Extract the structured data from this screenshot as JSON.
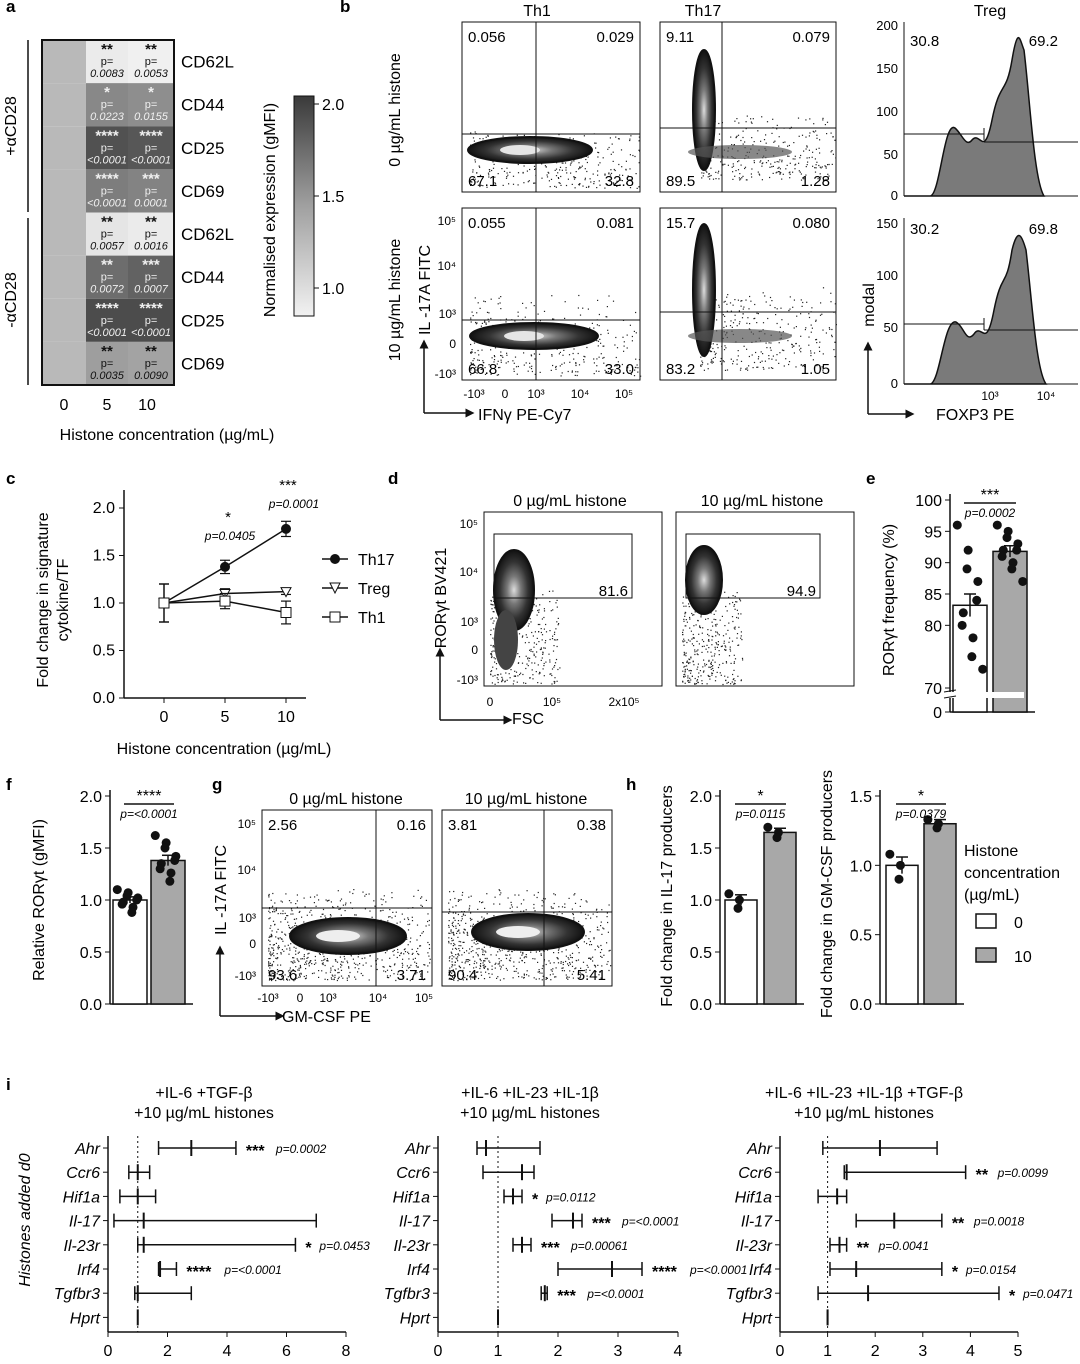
{
  "panel_letters": {
    "a": "a",
    "b": "b",
    "c": "c",
    "d": "d",
    "e": "e",
    "f": "f",
    "g": "g",
    "h": "h",
    "i": "i"
  },
  "colors": {
    "bar_white": "#ffffff",
    "bar_grey": "#a8a8a8",
    "hist_fill": "#7a7a7a",
    "dot": "#111111"
  },
  "panel_a": {
    "group_plus": "+αCD28",
    "group_minus": "-αCD28",
    "x_labels": [
      "0",
      "5",
      "10"
    ],
    "xlabel": "Histone concentration (µg/mL)",
    "colorbar_label": "Normalised expression (gMFI)",
    "colorbar_ticks": [
      "2.0",
      "1.5",
      "1.0"
    ],
    "rows": [
      {
        "marker": "CD62L",
        "cells": [
          {
            "sig": "",
            "p": ""
          },
          {
            "sig": "**",
            "p": "0.0083"
          },
          {
            "sig": "**",
            "p": "0.0053"
          }
        ]
      },
      {
        "marker": "CD44",
        "cells": [
          {
            "sig": "",
            "p": ""
          },
          {
            "sig": "*",
            "p": "0.0223"
          },
          {
            "sig": "*",
            "p": "0.0155"
          }
        ]
      },
      {
        "marker": "CD25",
        "cells": [
          {
            "sig": "",
            "p": ""
          },
          {
            "sig": "****",
            "p": "<0.0001"
          },
          {
            "sig": "****",
            "p": "<0.0001"
          }
        ]
      },
      {
        "marker": "CD69",
        "cells": [
          {
            "sig": "",
            "p": ""
          },
          {
            "sig": "****",
            "p": "<0.0001"
          },
          {
            "sig": "***",
            "p": "0.0001"
          }
        ]
      },
      {
        "marker": "CD62L",
        "cells": [
          {
            "sig": "",
            "p": ""
          },
          {
            "sig": "**",
            "p": "0.0057"
          },
          {
            "sig": "**",
            "p": "0.0016"
          }
        ]
      },
      {
        "marker": "CD44",
        "cells": [
          {
            "sig": "",
            "p": ""
          },
          {
            "sig": "**",
            "p": "0.0072"
          },
          {
            "sig": "***",
            "p": "0.0007"
          }
        ]
      },
      {
        "marker": "CD25",
        "cells": [
          {
            "sig": "",
            "p": ""
          },
          {
            "sig": "****",
            "p": "<0.0001"
          },
          {
            "sig": "****",
            "p": "<0.0001"
          }
        ]
      },
      {
        "marker": "CD69",
        "cells": [
          {
            "sig": "",
            "p": ""
          },
          {
            "sig": "**",
            "p": "0.0035"
          },
          {
            "sig": "**",
            "p": "0.0090"
          }
        ]
      }
    ],
    "p_prefix": "p=",
    "values": [
      [
        1.0,
        0.55,
        0.5
      ],
      [
        1.0,
        1.45,
        1.4
      ],
      [
        1.0,
        1.95,
        1.9
      ],
      [
        1.0,
        1.55,
        1.5
      ],
      [
        1.0,
        0.6,
        0.55
      ],
      [
        1.0,
        1.7,
        1.8
      ],
      [
        1.0,
        2.0,
        2.0
      ],
      [
        1.0,
        1.25,
        1.2
      ]
    ]
  },
  "panel_b": {
    "col_titles": [
      "Th1",
      "Th17",
      "Treg"
    ],
    "row_labels": [
      "0 µg/mL  histone",
      "10 µg/mL  histone"
    ],
    "th1_top": [
      "0.056",
      "0.029",
      "67.1",
      "32.8"
    ],
    "th1_bot": [
      "0.055",
      "0.081",
      "66.8",
      "33.0"
    ],
    "th17_top": [
      "9.11",
      "0.079",
      "89.5",
      "1.28"
    ],
    "th17_bot": [
      "15.7",
      "0.080",
      "83.2",
      "1.05"
    ],
    "treg_top": [
      "30.8",
      "69.2"
    ],
    "treg_bot": [
      "30.2",
      "69.8"
    ],
    "ylabel": "IL -17A FITC",
    "xlabel": "IFNγ  PE-Cy7",
    "treg_xlabel": "FOXP3 PE",
    "treg_ylabel": "modal",
    "y_ticks": [
      "10⁵",
      "10⁴",
      "10³",
      "0",
      "-10³"
    ],
    "x_ticks": [
      "-10³",
      "0",
      "10³",
      "10⁴",
      "10⁵"
    ],
    "treg_y_ticks_top": [
      "200",
      "150",
      "100",
      "50",
      "0"
    ],
    "treg_y_ticks_bot": [
      "150",
      "100",
      "50",
      "0"
    ],
    "treg_x_ticks": [
      "10³",
      "10⁴"
    ]
  },
  "chart_data": [
    {
      "id": "c",
      "type": "line",
      "x": [
        0,
        5,
        10
      ],
      "series": [
        {
          "name": "Th17",
          "values": [
            1.0,
            1.38,
            1.78
          ],
          "err": [
            0.2,
            0.07,
            0.08
          ]
        },
        {
          "name": "Treg",
          "values": [
            1.0,
            1.1,
            1.12
          ],
          "err": [
            0.2,
            0.05,
            0.03
          ]
        },
        {
          "name": "Th1",
          "values": [
            1.0,
            1.02,
            0.9
          ],
          "err": [
            0.2,
            0.08,
            0.12
          ]
        }
      ],
      "xlabel": "Histone concentration (µg/mL)",
      "ylabel_line1": "Fold change in signature",
      "ylabel_line2": "cytokine/TF",
      "ylim": [
        0,
        2.0
      ],
      "yticks": [
        "0.0",
        "0.5",
        "1.0",
        "1.5",
        "2.0"
      ],
      "xticks": [
        "0",
        "5",
        "10"
      ],
      "annotations": [
        {
          "stars": "*",
          "p": "p=0.0405"
        },
        {
          "stars": "***",
          "p": "p=0.0001"
        }
      ]
    },
    {
      "id": "e",
      "type": "bar",
      "categories": [
        "0",
        "10"
      ],
      "values": [
        83.2,
        91.8
      ],
      "err": [
        1.8,
        0.9
      ],
      "points": [
        [
          96,
          92,
          89,
          87,
          84,
          82,
          80,
          78,
          75,
          73
        ],
        [
          96,
          95,
          94,
          93,
          92,
          92,
          91,
          90,
          89,
          87
        ]
      ],
      "ylabel": "RORγt frequency (%)",
      "yticks": [
        "100",
        "95",
        "90",
        "85",
        "80",
        "70",
        "0"
      ],
      "stars": "***",
      "p": "p=0.0002"
    },
    {
      "id": "f",
      "type": "bar",
      "categories": [
        "0",
        "10"
      ],
      "values": [
        1.0,
        1.38
      ],
      "err": [
        0.03,
        0.05
      ],
      "points": [
        [
          1.1,
          1.07,
          1.04,
          1.02,
          1.0,
          0.98,
          0.96,
          0.93,
          0.88
        ],
        [
          1.62,
          1.55,
          1.5,
          1.42,
          1.38,
          1.35,
          1.3,
          1.26,
          1.18
        ]
      ],
      "ylabel": "Relative RORγt (gMFI)",
      "yticks": [
        "2.0",
        "1.5",
        "1.0",
        "0.5",
        "0.0"
      ],
      "ylim": [
        0,
        2.0
      ],
      "stars": "****",
      "p": "p=<0.0001"
    },
    {
      "id": "h1",
      "type": "bar",
      "categories": [
        "0",
        "10"
      ],
      "values": [
        1.0,
        1.65
      ],
      "err": [
        0.05,
        0.04
      ],
      "points": [
        [
          1.06,
          1.0,
          0.92
        ],
        [
          1.7,
          1.65,
          1.6
        ]
      ],
      "ylabel": "Fold change in IL-17 producers",
      "yticks": [
        "2.0",
        "1.5",
        "1.0",
        "0.5",
        "0.0"
      ],
      "ylim": [
        0,
        2.0
      ],
      "stars": "*",
      "p": "p=0.0115"
    },
    {
      "id": "h2",
      "type": "bar",
      "categories": [
        "0",
        "10"
      ],
      "values": [
        1.0,
        1.3
      ],
      "err": [
        0.06,
        0.03
      ],
      "points": [
        [
          1.08,
          1.0,
          0.9
        ],
        [
          1.33,
          1.3,
          1.27
        ]
      ],
      "ylabel": "Fold change in GM-CSF producers",
      "yticks": [
        "1.5",
        "1.0",
        "0.5",
        "0.0"
      ],
      "ylim": [
        0,
        1.5
      ],
      "stars": "*",
      "p": "p=0.0379"
    },
    {
      "id": "i",
      "type": "scatter",
      "genes": [
        "Ahr",
        "Ccr6",
        "Hif1a",
        "Il-17",
        "Il-23r",
        "Irf4",
        "Tgfbr3",
        "Hprt"
      ],
      "ylabel": "Histones added d0",
      "subpanels": [
        {
          "title1": "+IL-6 +TGF-β",
          "title2": "+10 µg/mL histones",
          "xlim": [
            0,
            8
          ],
          "xticks": [
            "0",
            "2",
            "4",
            "6",
            "8"
          ],
          "rows": [
            [
              2.8,
              1.7,
              4.3,
              "***",
              "p=0.0002"
            ],
            [
              1.0,
              0.7,
              1.4,
              "",
              ""
            ],
            [
              1.0,
              0.4,
              1.6,
              "",
              ""
            ],
            [
              1.2,
              0.2,
              7.0,
              "",
              ""
            ],
            [
              1.2,
              1.0,
              6.3,
              "*",
              "p=0.0453"
            ],
            [
              1.75,
              1.7,
              2.3,
              "****",
              "p=<0.0001"
            ],
            [
              1.0,
              0.9,
              2.8,
              "",
              ""
            ],
            [
              1.0,
              1.0,
              1.0,
              "",
              ""
            ]
          ]
        },
        {
          "title1": "+IL-6 +IL-23 +IL-1β",
          "title2": "+10 µg/mL histones",
          "xlim": [
            0,
            4
          ],
          "xticks": [
            "0",
            "1",
            "2",
            "3",
            "4"
          ],
          "rows": [
            [
              0.8,
              0.65,
              1.7,
              "",
              ""
            ],
            [
              1.4,
              0.75,
              1.6,
              "",
              ""
            ],
            [
              1.25,
              1.1,
              1.4,
              "*",
              "p=0.0112"
            ],
            [
              2.25,
              1.9,
              2.4,
              "***",
              "p=<0.0001"
            ],
            [
              1.4,
              1.25,
              1.55,
              "***",
              "p=0.00061"
            ],
            [
              2.9,
              2.0,
              3.4,
              "****",
              "p=<0.0001"
            ],
            [
              1.78,
              1.72,
              1.82,
              "***",
              "p=<0.0001"
            ],
            [
              1.0,
              1.0,
              1.0,
              "",
              ""
            ]
          ]
        },
        {
          "title1": "+IL-6 +IL-23 +IL-1β +TGF-β",
          "title2": "+10 µg/mL histones",
          "xlim": [
            0,
            5
          ],
          "xticks": [
            "0",
            "1",
            "2",
            "3",
            "4",
            "5"
          ],
          "rows": [
            [
              2.1,
              0.9,
              3.3,
              "",
              ""
            ],
            [
              1.4,
              1.35,
              3.9,
              "**",
              "p=0.0099"
            ],
            [
              1.2,
              0.8,
              1.4,
              "",
              ""
            ],
            [
              2.4,
              1.6,
              3.4,
              "**",
              "p=0.0018"
            ],
            [
              1.25,
              1.05,
              1.4,
              "**",
              "p=0.0041"
            ],
            [
              1.6,
              1.05,
              3.4,
              "*",
              "p=0.0154"
            ],
            [
              1.85,
              0.8,
              4.6,
              "*",
              "p=0.0471"
            ],
            [
              1.0,
              1.0,
              1.0,
              "",
              ""
            ]
          ]
        }
      ]
    }
  ],
  "panel_d": {
    "titles": [
      "0 µg/mL  histone",
      "10 µg/mL  histone"
    ],
    "gates": [
      "81.6",
      "94.9"
    ],
    "ylabel": "RORγt BV421",
    "xlabel": "FSC",
    "y_ticks": [
      "10⁵",
      "10⁴",
      "10³",
      "0",
      "-10³"
    ],
    "x_ticks": [
      "0",
      "10⁵",
      "2x10⁵"
    ]
  },
  "panel_g": {
    "titles": [
      "0 µg/mL  histone",
      "10 µg/mL  histone"
    ],
    "left": [
      "2.56",
      "0.16",
      "93.6",
      "3.71"
    ],
    "right": [
      "3.81",
      "0.38",
      "90.4",
      "5.41"
    ],
    "ylabel": "IL -17A FITC",
    "xlabel": "GM-CSF PE",
    "y_ticks": [
      "10⁵",
      "10⁴",
      "10³",
      "0",
      "-10³"
    ],
    "x_ticks": [
      "-10³",
      "0",
      "10³",
      "10⁴",
      "10⁵"
    ]
  },
  "legend_h": {
    "title1": "Histone",
    "title2": "concentration",
    "title3": "(µg/mL)",
    "items": [
      "0",
      "10"
    ]
  }
}
